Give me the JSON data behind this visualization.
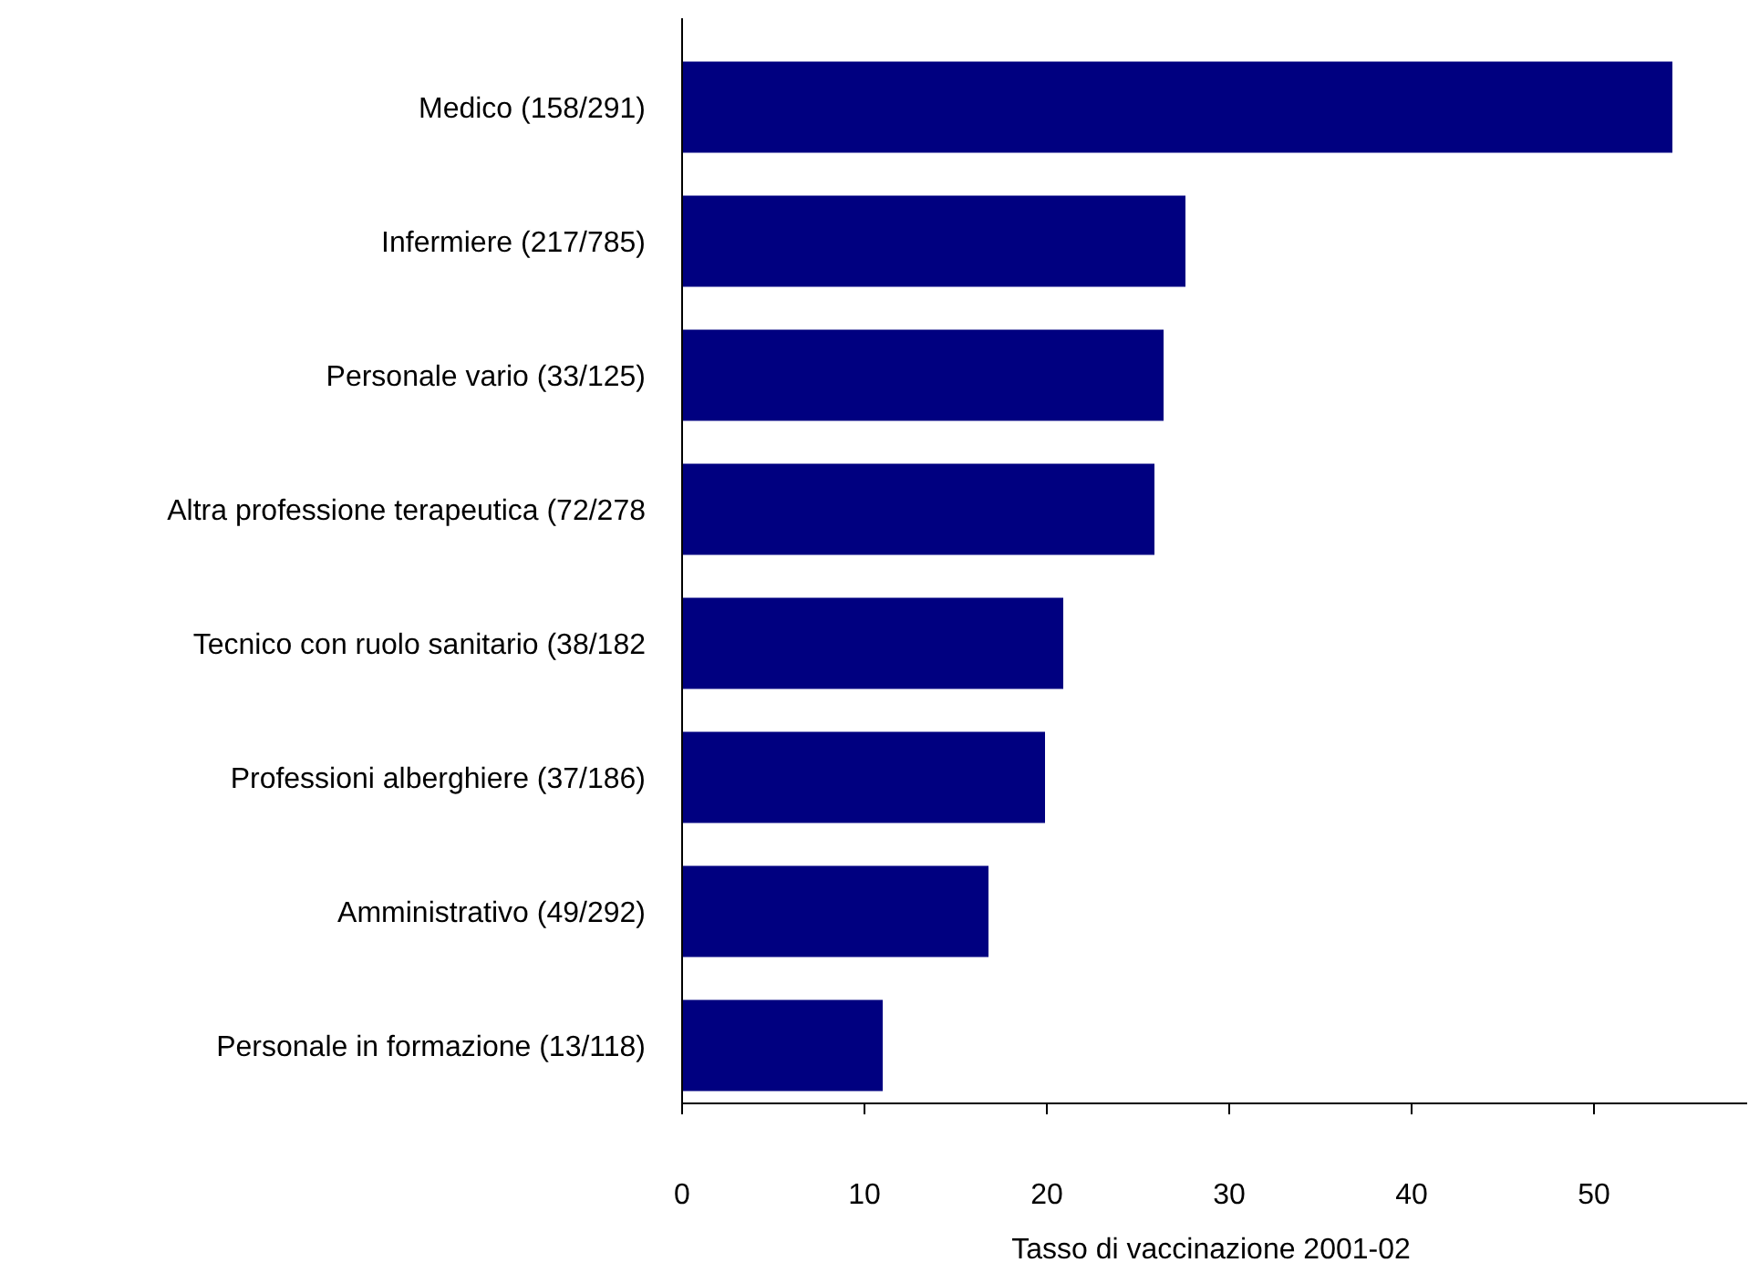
{
  "chart_data": {
    "type": "bar",
    "orientation": "horizontal",
    "xlabel": "Tasso di  vaccinazione 2001-02",
    "categories": [
      "Medico (158/291)",
      "Infermiere (217/785)",
      "Personale vario (33/125)",
      "Altra professione terapeutica (72/278",
      "Tecnico con ruolo sanitario (38/182",
      "Professioni alberghiere (37/186)",
      "Amministrativo (49/292)",
      "Personale in formazione (13/118)"
    ],
    "values": [
      54.3,
      27.6,
      26.4,
      25.9,
      20.9,
      19.9,
      16.8,
      11.0
    ],
    "color": "#000080",
    "xlim": [
      0,
      58.4
    ],
    "xticks": [
      0,
      10,
      20,
      30,
      40,
      50
    ],
    "grid": false
  }
}
